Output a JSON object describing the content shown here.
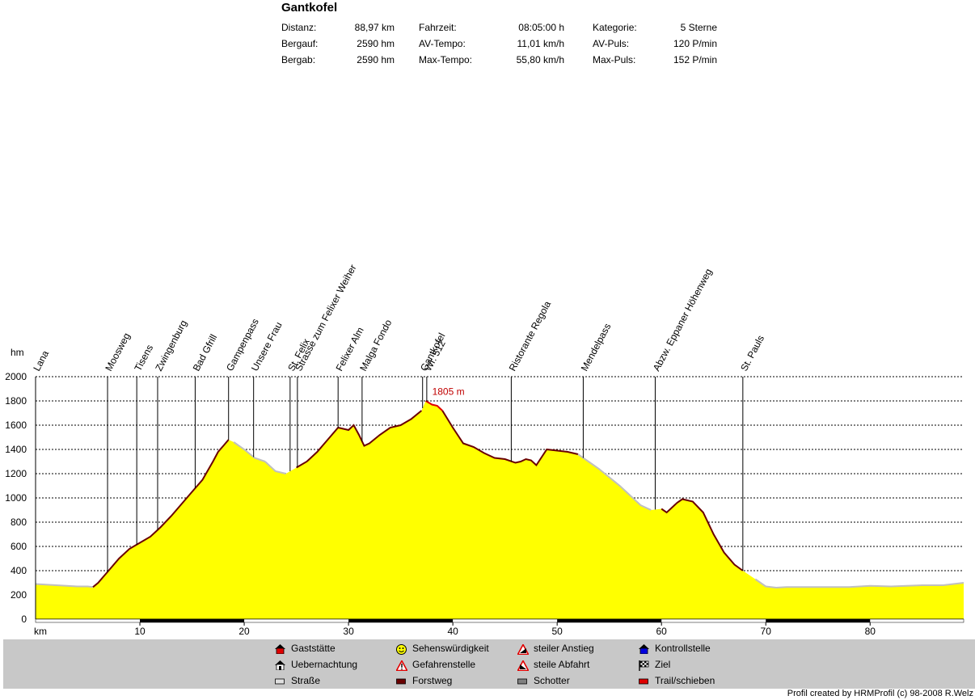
{
  "title": "Gantkofel",
  "stats": [
    {
      "label": "Distanz:",
      "value": "88,97 km"
    },
    {
      "label": "Bergauf:",
      "value": "2590 hm"
    },
    {
      "label": "Bergab:",
      "value": "2590 hm"
    },
    {
      "label": "Fahrzeit:",
      "value": "08:05:00 h"
    },
    {
      "label": "AV-Tempo:",
      "value": "11,01 km/h"
    },
    {
      "label": "Max-Tempo:",
      "value": "55,80 km/h"
    },
    {
      "label": "Kategorie:",
      "value": "5 Sterne"
    },
    {
      "label": "AV-Puls:",
      "value": "120 P/min"
    },
    {
      "label": "Max-Puls:",
      "value": "152 P/min"
    }
  ],
  "legend": [
    {
      "label": "Gaststätte",
      "icon": "house-red-icon",
      "color": "#e00000"
    },
    {
      "label": "Uebernachtung",
      "icon": "tent-icon",
      "color": "#000000"
    },
    {
      "label": "Straße",
      "icon": "road-swatch-icon",
      "color": "#e0e0e0"
    },
    {
      "label": "Sehenswürdigkeit",
      "icon": "smiley-icon",
      "color": "#ffff00"
    },
    {
      "label": "Gefahrenstelle",
      "icon": "warning-triangle-icon",
      "color": "#e00000"
    },
    {
      "label": "Forstweg",
      "icon": "forest-road-swatch-icon",
      "color": "#6a0000"
    },
    {
      "label": "steiler Anstieg",
      "icon": "steep-climb-icon",
      "color": "#e00000"
    },
    {
      "label": "steile Abfahrt",
      "icon": "steep-descent-icon",
      "color": "#e00000"
    },
    {
      "label": "Schotter",
      "icon": "gravel-swatch-icon",
      "color": "#808080"
    },
    {
      "label": "Kontrollstelle",
      "icon": "checkpoint-house-icon",
      "color": "#0000e0"
    },
    {
      "label": "Ziel",
      "icon": "checkered-flag-icon",
      "color": "#000000"
    },
    {
      "label": "Trail/schieben",
      "icon": "trail-swatch-icon",
      "color": "#e00000"
    }
  ],
  "credit": "Profil created by HRMProfil (c) 98-2008 R.Welz",
  "chart_data": {
    "type": "area",
    "xlabel": "km",
    "ylabel": "hm",
    "xlim": [
      0,
      88.97
    ],
    "ylim": [
      0,
      2000
    ],
    "x_ticks": [
      10,
      20,
      30,
      40,
      50,
      60,
      70,
      80
    ],
    "y_ticks": [
      0,
      200,
      400,
      600,
      800,
      1000,
      1200,
      1400,
      1600,
      1800,
      2000
    ],
    "grid": true,
    "fill_color": "#ffff00",
    "max_label": "1805 m",
    "max_point": {
      "x": 37.4,
      "y": 1805
    },
    "series": [
      {
        "x": [
          0,
          1,
          2,
          3,
          4,
          5,
          5.5,
          6,
          7,
          8,
          9,
          10,
          11,
          11.5,
          12,
          13,
          14,
          15,
          16,
          17,
          17.5,
          18,
          18.5,
          19,
          20,
          21,
          22,
          23,
          24,
          25,
          26,
          27,
          28,
          29,
          30,
          30.5,
          31,
          31.5,
          32,
          33,
          34,
          35,
          36,
          37,
          37.4,
          38,
          38.5,
          39,
          40,
          41,
          42,
          43,
          44,
          45,
          46,
          46.5,
          47,
          47.5,
          48,
          49,
          50,
          51,
          52,
          53,
          54,
          55,
          56,
          57,
          58,
          59,
          60,
          60.5,
          61,
          61.5,
          62,
          63,
          64,
          65,
          66,
          67,
          67.8,
          69,
          70,
          71,
          72,
          75,
          78,
          80,
          82,
          85,
          87,
          88.97
        ],
        "y": [
          290,
          285,
          280,
          275,
          270,
          270,
          265,
          300,
          400,
          500,
          580,
          630,
          680,
          720,
          760,
          850,
          950,
          1050,
          1150,
          1300,
          1380,
          1430,
          1480,
          1460,
          1400,
          1330,
          1300,
          1220,
          1200,
          1250,
          1300,
          1380,
          1480,
          1580,
          1560,
          1600,
          1520,
          1430,
          1450,
          1520,
          1580,
          1600,
          1650,
          1720,
          1800,
          1770,
          1760,
          1720,
          1580,
          1450,
          1420,
          1370,
          1330,
          1320,
          1290,
          1300,
          1320,
          1310,
          1270,
          1400,
          1390,
          1380,
          1360,
          1300,
          1240,
          1170,
          1100,
          1020,
          940,
          900,
          910,
          880,
          920,
          960,
          990,
          970,
          880,
          700,
          550,
          450,
          400,
          330,
          270,
          260,
          265,
          265,
          265,
          275,
          270,
          280,
          280,
          300
        ]
      }
    ],
    "waypoints": [
      {
        "name": "Lana",
        "km": 0
      },
      {
        "name": "Moosweg",
        "km": 6.9
      },
      {
        "name": "Tisens",
        "km": 9.7
      },
      {
        "name": "Zwingenburg",
        "km": 11.7
      },
      {
        "name": "Bad Gfrill",
        "km": 15.3
      },
      {
        "name": "Gampenpass",
        "km": 18.5
      },
      {
        "name": "Unsere Frau",
        "km": 20.9
      },
      {
        "name": "St. Felix",
        "km": 24.4
      },
      {
        "name": "Strasse zum Felixer Weiher",
        "km": 25.1
      },
      {
        "name": "Felixer Alm",
        "km": 29.0
      },
      {
        "name": "Malga Fondo",
        "km": 31.3
      },
      {
        "name": "Gantkofel",
        "km": 37.1
      },
      {
        "name": "Wr. 512",
        "km": 37.5
      },
      {
        "name": "Ristorante Regola",
        "km": 45.6
      },
      {
        "name": "Mendelpass",
        "km": 52.5
      },
      {
        "name": "Abzw. Eppaner Höhenweg",
        "km": 59.4
      },
      {
        "name": "St. Pauls",
        "km": 67.8
      }
    ]
  }
}
